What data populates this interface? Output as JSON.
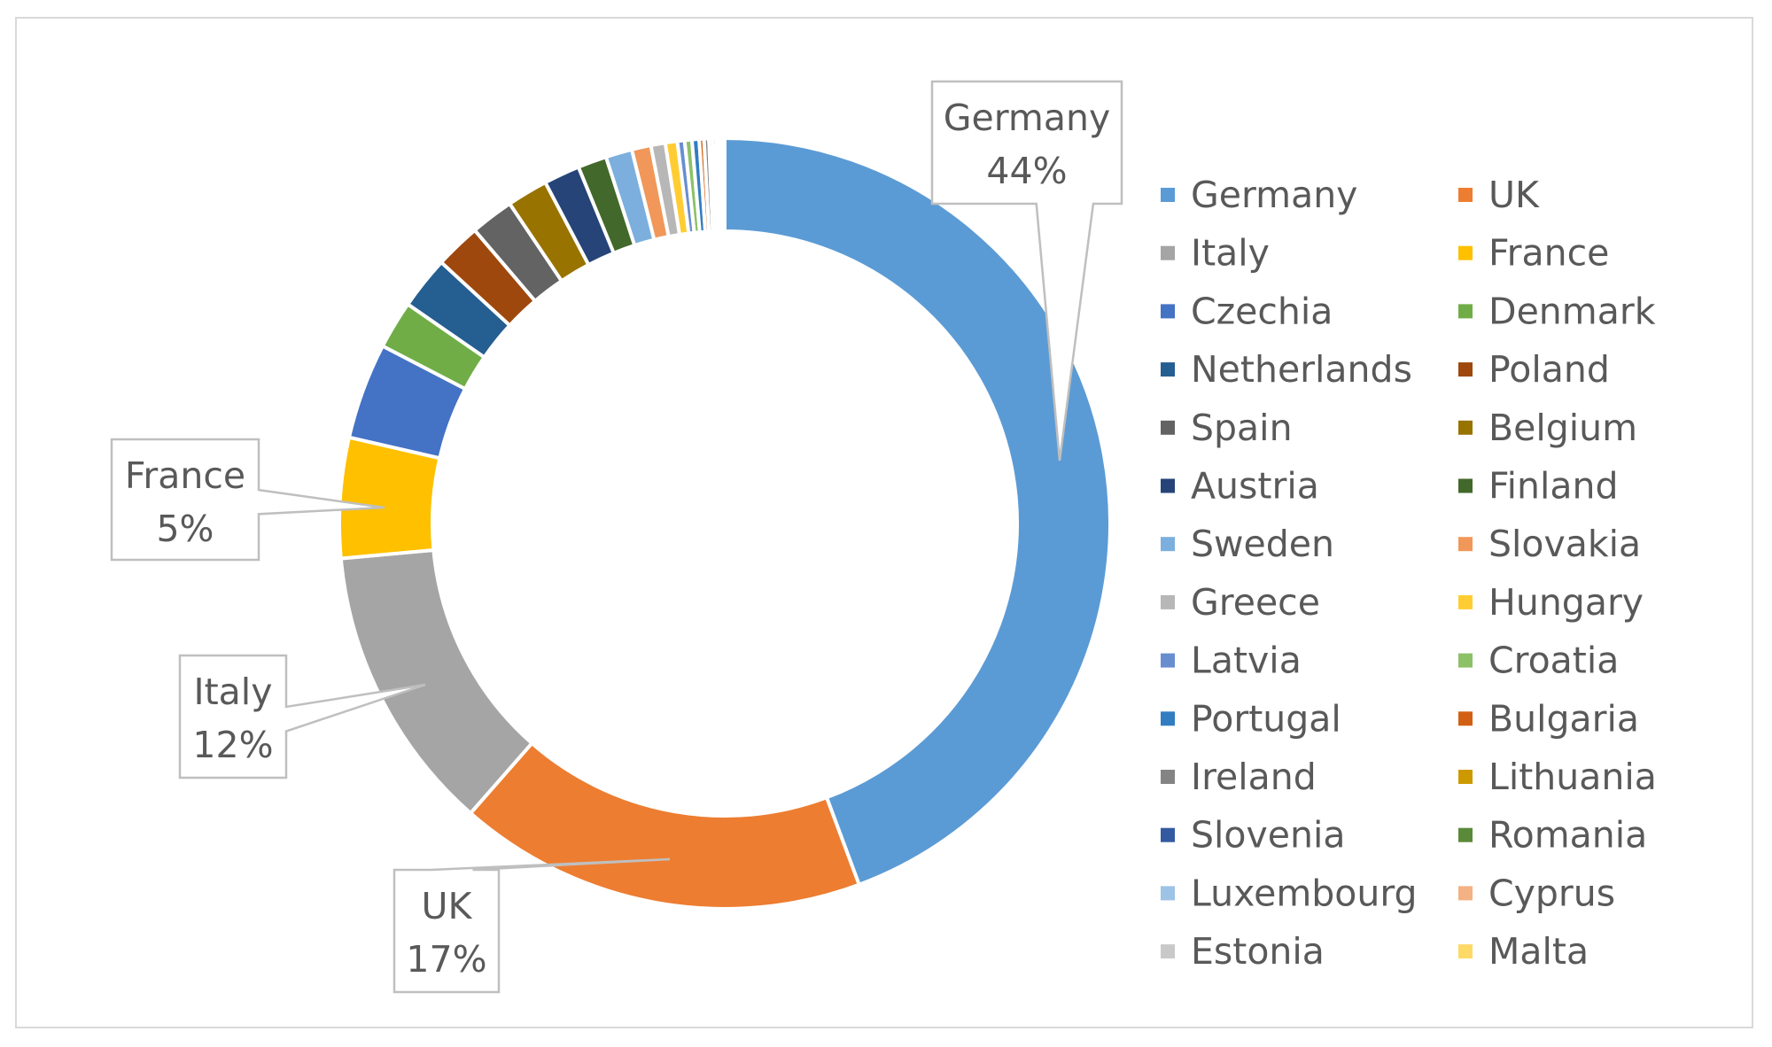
{
  "chart_data": {
    "type": "pie",
    "style": "donut",
    "title": "",
    "legend_position": "right",
    "categories": [
      "Germany",
      "UK",
      "Italy",
      "France",
      "Czechia",
      "Denmark",
      "Netherlands",
      "Poland",
      "Spain",
      "Belgium",
      "Austria",
      "Finland",
      "Sweden",
      "Slovakia",
      "Greece",
      "Hungary",
      "Latvia",
      "Croatia",
      "Portugal",
      "Bulgaria",
      "Ireland",
      "Lithuania",
      "Slovenia",
      "Romania",
      "Luxembourg",
      "Cyprus",
      "Estonia",
      "Malta"
    ],
    "values": [
      44.0,
      17.0,
      12.0,
      5.0,
      4.0,
      2.0,
      2.2,
      1.9,
      1.8,
      1.7,
      1.5,
      1.2,
      1.1,
      0.8,
      0.6,
      0.5,
      0.3,
      0.3,
      0.3,
      0.2,
      0.2,
      0.15,
      0.15,
      0.1,
      0.1,
      0.05,
      0.05,
      0.05
    ],
    "colors": [
      "#5b9bd5",
      "#ed7d31",
      "#a5a5a5",
      "#ffc000",
      "#4472c4",
      "#70ad47",
      "#255e91",
      "#9e480e",
      "#636363",
      "#997300",
      "#264478",
      "#43682b",
      "#7cafdd",
      "#f1975a",
      "#b7b7b7",
      "#ffcd33",
      "#698ed0",
      "#8cc168",
      "#327dc2",
      "#d26012",
      "#848484",
      "#cc9a00",
      "#335aa1",
      "#5a8a39",
      "#9dc3e6",
      "#f4b183",
      "#c9c9c9",
      "#ffd966"
    ],
    "callouts": [
      {
        "name": "Germany",
        "label": "44%"
      },
      {
        "name": "UK",
        "label": "17%"
      },
      {
        "name": "Italy",
        "label": "12%"
      },
      {
        "name": "France",
        "label": "5%"
      }
    ]
  }
}
